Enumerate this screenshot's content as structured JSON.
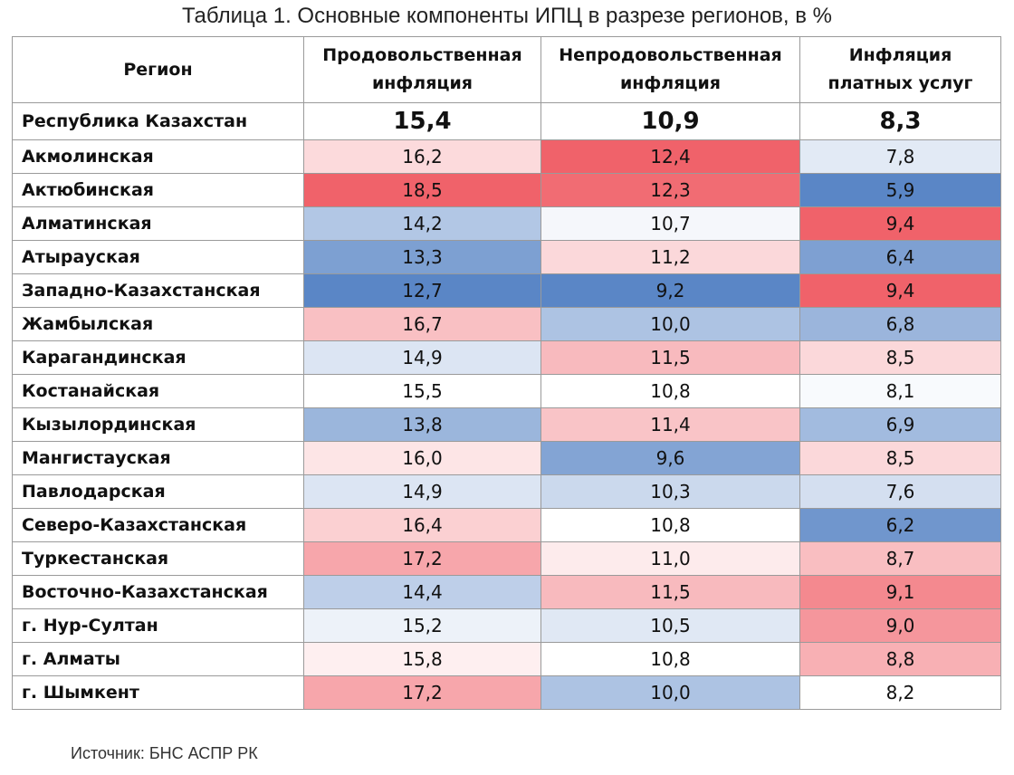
{
  "title": "Таблица 1. Основные компоненты ИПЦ в разрезе регионов, в %",
  "headers": {
    "region": "Регион",
    "food_1": "Продовольственная",
    "food_2": "инфляция",
    "nonfood_1": "Непродовольственная",
    "nonfood_2": "инфляция",
    "services_1": "Инфляция",
    "services_2": "платных услуг"
  },
  "total": {
    "name": "Республика Казахстан",
    "food": "15,4",
    "nonfood": "10,9",
    "services": "8,3"
  },
  "rows": [
    {
      "name": "Акмолинская",
      "food": "16,2",
      "nonfood": "12,4",
      "services": "7,8"
    },
    {
      "name": "Актюбинская",
      "food": "18,5",
      "nonfood": "12,3",
      "services": "5,9"
    },
    {
      "name": "Алматинская",
      "food": "14,2",
      "nonfood": "10,7",
      "services": "9,4"
    },
    {
      "name": "Атырауская",
      "food": "13,3",
      "nonfood": "11,2",
      "services": "6,4"
    },
    {
      "name": "Западно-Казахстанская",
      "food": "12,7",
      "nonfood": "9,2",
      "services": "9,4"
    },
    {
      "name": "Жамбылская",
      "food": "16,7",
      "nonfood": "10,0",
      "services": "6,8"
    },
    {
      "name": "Карагандинская",
      "food": "14,9",
      "nonfood": "11,5",
      "services": "8,5"
    },
    {
      "name": "Костанайская",
      "food": "15,5",
      "nonfood": "10,8",
      "services": "8,1"
    },
    {
      "name": "Кызылординская",
      "food": "13,8",
      "nonfood": "11,4",
      "services": "6,9"
    },
    {
      "name": "Мангистауская",
      "food": "16,0",
      "nonfood": "9,6",
      "services": "8,5"
    },
    {
      "name": "Павлодарская",
      "food": "14,9",
      "nonfood": "10,3",
      "services": "7,6"
    },
    {
      "name": "Северо-Казахстанская",
      "food": "16,4",
      "nonfood": "10,8",
      "services": "6,2"
    },
    {
      "name": "Туркестанская",
      "food": "17,2",
      "nonfood": "11,0",
      "services": "8,7"
    },
    {
      "name": "Восточно-Казахстанская",
      "food": "14,4",
      "nonfood": "11,5",
      "services": "9,1"
    },
    {
      "name": "г. Нур-Султан",
      "food": "15,2",
      "nonfood": "10,5",
      "services": "9,0"
    },
    {
      "name": "г. Алматы",
      "food": "15,8",
      "nonfood": "10,8",
      "services": "8,8"
    },
    {
      "name": "г. Шымкент",
      "food": "17,2",
      "nonfood": "10,0",
      "services": "8,2"
    }
  ],
  "colors": {
    "low": "#5a86c6",
    "mid": "#ffffff",
    "high": "#f0626a",
    "border": "#9a9a9a"
  },
  "source": "Источник: БНС АСПР РК"
}
